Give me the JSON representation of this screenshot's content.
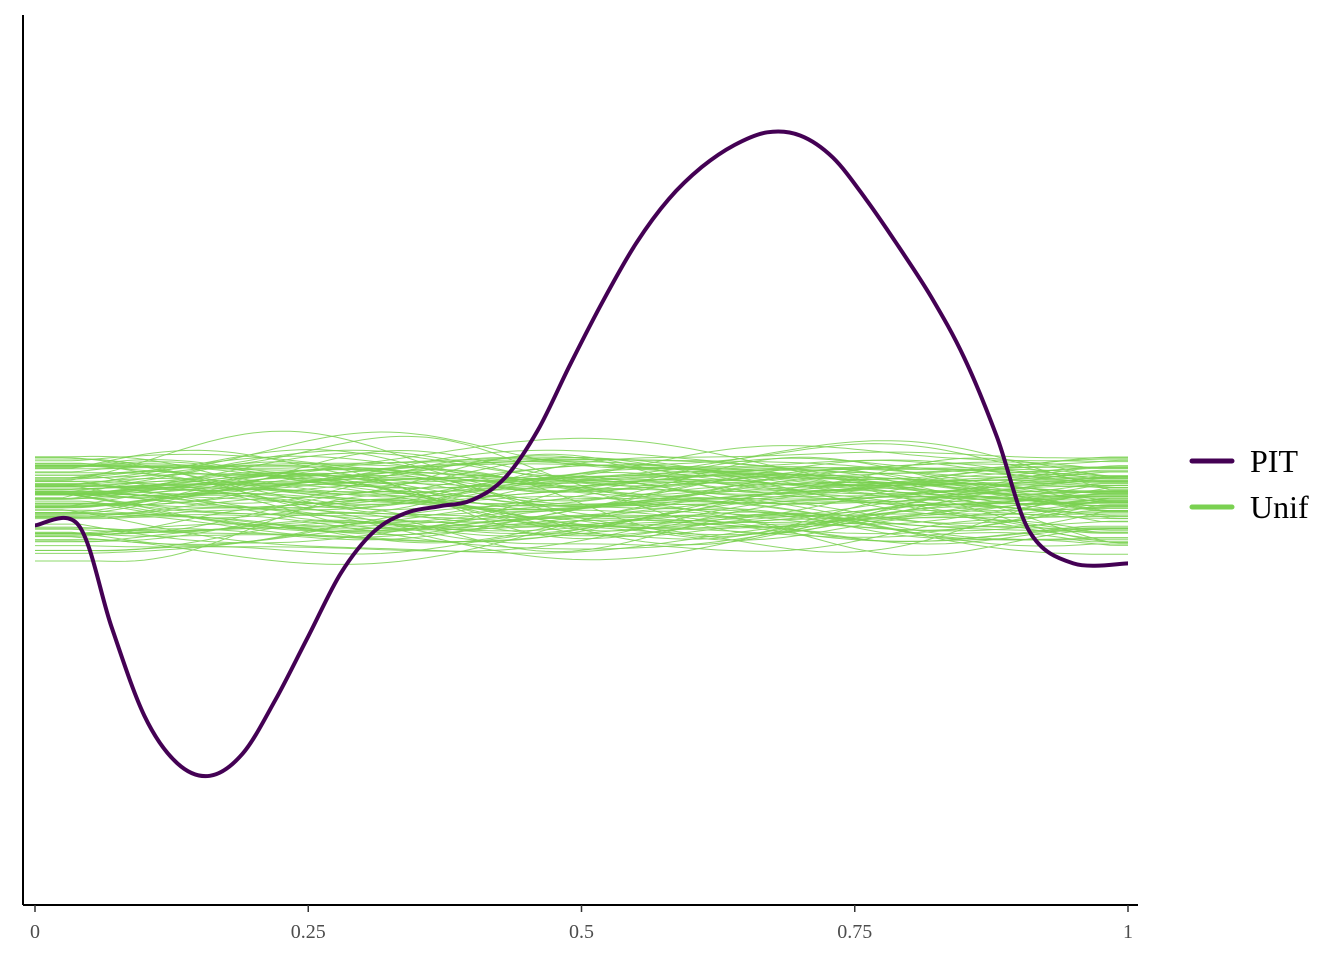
{
  "chart_data": {
    "type": "line",
    "title": "",
    "xlabel": "",
    "ylabel": "",
    "xlim": [
      0,
      1
    ],
    "x_ticks": [
      0,
      0.25,
      0.5,
      0.75,
      1
    ],
    "x_tick_labels": [
      "0",
      "0.25",
      "0.5",
      "0.75",
      "1"
    ],
    "y_axis_labels_shown": false,
    "y_range_relative": [
      -1.0,
      1.0
    ],
    "grid": false,
    "legend_position": "right",
    "legend": [
      {
        "label": "PIT",
        "color": "#440154"
      },
      {
        "label": "Unif",
        "color": "#7AD151"
      }
    ],
    "series": [
      {
        "name": "PIT",
        "color": "#440154",
        "x": [
          0,
          0.04,
          0.07,
          0.1,
          0.13,
          0.16,
          0.19,
          0.22,
          0.25,
          0.28,
          0.31,
          0.34,
          0.37,
          0.4,
          0.43,
          0.46,
          0.49,
          0.52,
          0.55,
          0.58,
          0.61,
          0.64,
          0.67,
          0.7,
          0.73,
          0.76,
          0.79,
          0.82,
          0.85,
          0.88,
          0.91,
          0.95,
          1
        ],
        "y": [
          -0.08,
          -0.08,
          -0.4,
          -0.68,
          -0.83,
          -0.87,
          -0.8,
          -0.63,
          -0.43,
          -0.23,
          -0.1,
          -0.04,
          -0.02,
          0.0,
          0.07,
          0.22,
          0.43,
          0.63,
          0.81,
          0.95,
          1.05,
          1.12,
          1.16,
          1.15,
          1.08,
          0.95,
          0.8,
          0.64,
          0.45,
          0.2,
          -0.1,
          -0.2,
          -0.2
        ]
      }
    ],
    "reference_series": {
      "name": "Unif",
      "color": "#7AD151",
      "count": 100,
      "description": "thin overlapping curves from uniform draws",
      "typical_range": [
        -0.25,
        0.25
      ]
    }
  }
}
